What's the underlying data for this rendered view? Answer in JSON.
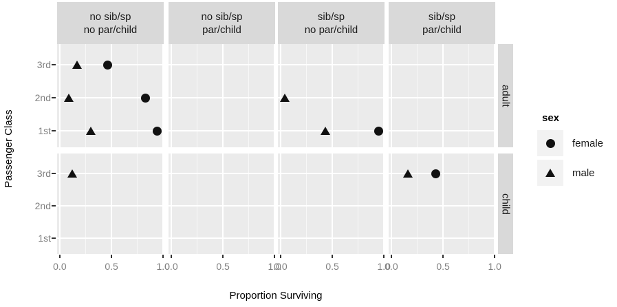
{
  "figure": {
    "y_axis_title": "Passenger Class",
    "x_axis_title": "Proportion Surviving"
  },
  "legend": {
    "title": "sex",
    "items": [
      {
        "label": "female",
        "marker": "circle-icon"
      },
      {
        "label": "male",
        "marker": "triangle-icon"
      }
    ]
  },
  "colors": {
    "panel_bg": "#ebebeb",
    "strip_bg": "#d9d9d9",
    "grid": "#ffffff",
    "marker": "#111111",
    "legend_key_bg": "#f2f2f2",
    "tick_label": "#7f7f7f",
    "tick_mark": "#333333"
  },
  "chart_data": {
    "type": "scatter",
    "title": "",
    "xlabel": "Proportion Surviving",
    "ylabel": "Passenger Class",
    "x_axis": {
      "range": [
        -0.05,
        1.05
      ],
      "ticks": [
        0,
        0.5,
        1
      ],
      "tick_labels": [
        "0.0",
        "0.5",
        "1.0"
      ],
      "minor_gridlines": [
        0.25,
        0.75
      ]
    },
    "y_axis": {
      "categories_top_to_bottom": [
        "3rd",
        "2nd",
        "1st"
      ]
    },
    "facets": {
      "columns": [
        "no sib/sp\nno par/child",
        "no sib/sp\npar/child",
        "sib/sp\nno par/child",
        "sib/sp\npar/child"
      ],
      "rows": [
        "adult",
        "child"
      ]
    },
    "series_legend": {
      "title": "sex",
      "entries": [
        {
          "name": "female",
          "shape": "circle"
        },
        {
          "name": "male",
          "shape": "triangle"
        }
      ]
    },
    "points": [
      {
        "col": 0,
        "row": 0,
        "facet_col": "no sib/sp no par/child",
        "facet_row": "adult",
        "class": "3rd",
        "sex": "male",
        "proportion": 0.17
      },
      {
        "col": 0,
        "row": 0,
        "facet_col": "no sib/sp no par/child",
        "facet_row": "adult",
        "class": "3rd",
        "sex": "female",
        "proportion": 0.46
      },
      {
        "col": 0,
        "row": 0,
        "facet_col": "no sib/sp no par/child",
        "facet_row": "adult",
        "class": "2nd",
        "sex": "male",
        "proportion": 0.09
      },
      {
        "col": 0,
        "row": 0,
        "facet_col": "no sib/sp no par/child",
        "facet_row": "adult",
        "class": "2nd",
        "sex": "female",
        "proportion": 0.83
      },
      {
        "col": 0,
        "row": 0,
        "facet_col": "no sib/sp no par/child",
        "facet_row": "adult",
        "class": "1st",
        "sex": "male",
        "proportion": 0.3
      },
      {
        "col": 0,
        "row": 0,
        "facet_col": "no sib/sp no par/child",
        "facet_row": "adult",
        "class": "1st",
        "sex": "female",
        "proportion": 0.94
      },
      {
        "col": 2,
        "row": 0,
        "facet_col": "sib/sp no par/child",
        "facet_row": "adult",
        "class": "2nd",
        "sex": "male",
        "proportion": 0.04
      },
      {
        "col": 2,
        "row": 0,
        "facet_col": "sib/sp no par/child",
        "facet_row": "adult",
        "class": "1st",
        "sex": "male",
        "proportion": 0.43
      },
      {
        "col": 2,
        "row": 0,
        "facet_col": "sib/sp no par/child",
        "facet_row": "adult",
        "class": "1st",
        "sex": "female",
        "proportion": 0.95
      },
      {
        "col": 0,
        "row": 1,
        "facet_col": "no sib/sp no par/child",
        "facet_row": "child",
        "class": "3rd",
        "sex": "male",
        "proportion": 0.12
      },
      {
        "col": 3,
        "row": 1,
        "facet_col": "sib/sp par/child",
        "facet_row": "child",
        "class": "3rd",
        "sex": "male",
        "proportion": 0.16
      },
      {
        "col": 3,
        "row": 1,
        "facet_col": "sib/sp par/child",
        "facet_row": "child",
        "class": "3rd",
        "sex": "female",
        "proportion": 0.43
      }
    ]
  }
}
